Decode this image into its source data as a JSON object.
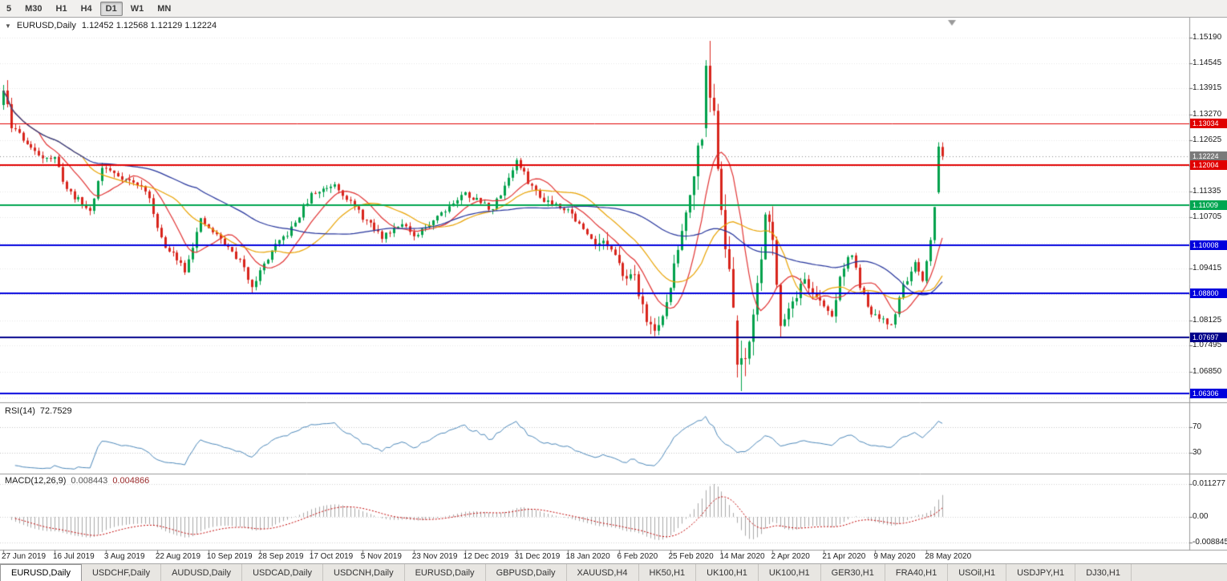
{
  "toolbar": {
    "buttons": [
      {
        "label": "5",
        "active": false
      },
      {
        "label": "M30",
        "active": false
      },
      {
        "label": "H1",
        "active": false
      },
      {
        "label": "H4",
        "active": false
      },
      {
        "label": "D1",
        "active": true
      },
      {
        "label": "W1",
        "active": false
      },
      {
        "label": "MN",
        "active": false
      }
    ]
  },
  "chart": {
    "menu_arrow": "▼",
    "symbol_label": "EURUSD,Daily",
    "ohlc": "1.12452 1.12568 1.12129 1.12224",
    "rsi_title": "RSI(14)",
    "rsi_value": "72.7529",
    "macd_title": "MACD(12,26,9)",
    "macd_value_main": "0.008443",
    "macd_value_signal": "0.004866"
  },
  "axis": {
    "price_labels": [
      "1.15190",
      "1.14545",
      "1.13915",
      "1.13270",
      "1.12625",
      "1.11335",
      "1.10705",
      "1.09415",
      "1.08125",
      "1.07495",
      "1.06850"
    ],
    "grid_prices": [
      1.1519,
      1.14545,
      1.13915,
      1.1327,
      1.12625,
      1.1198,
      1.11335,
      1.10705,
      1.1006,
      1.09415,
      1.08785,
      1.08125,
      1.07495,
      1.0685,
      1.06205
    ],
    "tags": [
      {
        "label": "1.13034",
        "price": 1.13034,
        "bg": "#e00000"
      },
      {
        "label": "1.12224",
        "price": 1.12224,
        "bg": "#7a7a7a"
      },
      {
        "label": "1.12004",
        "price": 1.12004,
        "bg": "#e00000"
      },
      {
        "label": "1.11009",
        "price": 1.11009,
        "bg": "#00a651"
      },
      {
        "label": "1.10008",
        "price": 1.10008,
        "bg": "#0000dd"
      },
      {
        "label": "1.08800",
        "price": 1.088,
        "bg": "#0000dd"
      },
      {
        "label": "1.07697",
        "price": 1.07697,
        "bg": "#00008b"
      },
      {
        "label": "1.06306",
        "price": 1.06306,
        "bg": "#0000dd"
      }
    ],
    "rsi_ticks": [
      {
        "label": "70",
        "value": 70
      },
      {
        "label": "30",
        "value": 30
      }
    ],
    "macd_ticks": [
      {
        "label": "0.011277",
        "value": 0.011277
      },
      {
        "label": "0.00",
        "value": 0
      },
      {
        "label": "-0.008845",
        "value": -0.008845
      }
    ]
  },
  "timeline": [
    "27 Jun 2019",
    "16 Jul 2019",
    "3 Aug 2019",
    "22 Aug 2019",
    "10 Sep 2019",
    "28 Sep 2019",
    "17 Oct 2019",
    "5 Nov 2019",
    "23 Nov 2019",
    "12 Dec 2019",
    "31 Dec 2019",
    "18 Jan 2020",
    "6 Feb 2020",
    "25 Feb 2020",
    "14 Mar 2020",
    "2 Apr 2020",
    "21 Apr 2020",
    "9 May 2020",
    "28 May 2020"
  ],
  "tabs": [
    {
      "label": "EURUSD,Daily",
      "active": true
    },
    {
      "label": "USDCHF,Daily",
      "active": false
    },
    {
      "label": "AUDUSD,Daily",
      "active": false
    },
    {
      "label": "USDCAD,Daily",
      "active": false
    },
    {
      "label": "USDCNH,Daily",
      "active": false
    },
    {
      "label": "EURUSD,Daily",
      "active": false
    },
    {
      "label": "GBPUSD,Daily",
      "active": false
    },
    {
      "label": "XAUUSD,H4",
      "active": false
    },
    {
      "label": "HK50,H1",
      "active": false
    },
    {
      "label": "UK100,H1",
      "active": false
    },
    {
      "label": "UK100,H1",
      "active": false
    },
    {
      "label": "GER30,H1",
      "active": false
    },
    {
      "label": "FRA40,H1",
      "active": false
    },
    {
      "label": "USOil,H1",
      "active": false
    },
    {
      "label": "USDJPY,H1",
      "active": false
    },
    {
      "label": "DJ30,H1",
      "active": false
    }
  ],
  "colors": {
    "up": "#00a14b",
    "down": "#d8241c",
    "grid": "#e6e6e6",
    "rsi_line": "#4a86b8",
    "rsi_level": "#c4c4c4",
    "macd_hist": "#a8a8a8",
    "macd_signal": "#c00000",
    "macd_grid": "#d0d0d0",
    "separator": "#9a9a9a",
    "axis_tick": "#707070",
    "current_price_line": "#8c8c8c",
    "shift_marker": "#9a9a9a"
  },
  "chart_data": {
    "type": "candlestick",
    "symbol": "EURUSD",
    "timeframe": "Daily",
    "title": "EURUSD,Daily with RSI(14) and MACD(12,26,9)",
    "last_bar": {
      "open": 1.12452,
      "high": 1.12568,
      "low": 1.12129,
      "close": 1.12224
    },
    "current_price": 1.12224,
    "x_range": [
      "27 Jun 2019",
      "early Jun 2020"
    ],
    "y_range": [
      1.0608,
      1.1568
    ],
    "seed": 11,
    "n_bars": 239,
    "horizontal_lines": [
      {
        "price": 1.13034,
        "color": "#e00000",
        "width": 1
      },
      {
        "price": 1.12004,
        "color": "#e00000",
        "width": 2
      },
      {
        "price": 1.11009,
        "color": "#00a651",
        "width": 2
      },
      {
        "price": 1.10008,
        "color": "#0000dd",
        "width": 2
      },
      {
        "price": 1.088,
        "color": "#0000dd",
        "width": 2
      },
      {
        "price": 1.07697,
        "color": "#00008b",
        "width": 2
      },
      {
        "price": 1.06306,
        "color": "#0000dd",
        "width": 2
      }
    ],
    "waypoints": [
      [
        0,
        1.137
      ],
      [
        3,
        1.129
      ],
      [
        8,
        1.123
      ],
      [
        13,
        1.1215
      ],
      [
        16,
        1.114
      ],
      [
        22,
        1.1085
      ],
      [
        25,
        1.1195
      ],
      [
        30,
        1.117
      ],
      [
        36,
        1.114
      ],
      [
        41,
        1.099
      ],
      [
        44,
        1.097
      ],
      [
        46,
        1.094
      ],
      [
        50,
        1.106
      ],
      [
        55,
        1.1015
      ],
      [
        60,
        1.096
      ],
      [
        63,
        1.09
      ],
      [
        68,
        1.0985
      ],
      [
        73,
        1.104
      ],
      [
        78,
        1.1125
      ],
      [
        84,
        1.1155
      ],
      [
        91,
        1.107
      ],
      [
        96,
        1.102
      ],
      [
        101,
        1.106
      ],
      [
        104,
        1.1015
      ],
      [
        110,
        1.1075
      ],
      [
        117,
        1.113
      ],
      [
        124,
        1.109
      ],
      [
        130,
        1.121
      ],
      [
        133,
        1.116
      ],
      [
        136,
        1.112
      ],
      [
        143,
        1.109
      ],
      [
        148,
        1.1025
      ],
      [
        153,
        1.1
      ],
      [
        156,
        1.0945
      ],
      [
        160,
        1.0915
      ],
      [
        164,
        1.079
      ],
      [
        167,
        1.081
      ],
      [
        171,
        1.099
      ],
      [
        174,
        1.1135
      ],
      [
        177,
        1.129
      ],
      [
        178,
        1.1448
      ],
      [
        180,
        1.133
      ],
      [
        182,
        1.11
      ],
      [
        184,
        1.092
      ],
      [
        187,
        1.069
      ],
      [
        189,
        1.0775
      ],
      [
        191,
        1.088
      ],
      [
        193,
        1.109
      ],
      [
        195,
        1.102
      ],
      [
        197,
        1.0805
      ],
      [
        200,
        1.086
      ],
      [
        203,
        1.0915
      ],
      [
        206,
        1.0865
      ],
      [
        210,
        1.0825
      ],
      [
        213,
        1.0955
      ],
      [
        215,
        1.0975
      ],
      [
        217,
        1.09
      ],
      [
        219,
        1.084
      ],
      [
        222,
        1.0815
      ],
      [
        225,
        1.08
      ],
      [
        228,
        1.09
      ],
      [
        231,
        1.095
      ],
      [
        233,
        1.0905
      ],
      [
        235,
        1.101
      ],
      [
        236,
        1.11
      ],
      [
        237,
        1.1245
      ],
      [
        238,
        1.1222
      ]
    ],
    "overrides": [
      {
        "i": 0,
        "o": 1.135,
        "h": 1.14,
        "l": 1.1338,
        "c": 1.1386
      },
      {
        "i": 1,
        "o": 1.1386,
        "h": 1.1412,
        "l": 1.1344,
        "c": 1.1352
      },
      {
        "i": 2,
        "o": 1.1352,
        "h": 1.1368,
        "l": 1.1282,
        "c": 1.1292
      },
      {
        "i": 46,
        "l": 1.0926
      },
      {
        "i": 63,
        "l": 1.0879
      },
      {
        "i": 164,
        "l": 1.0778
      },
      {
        "i": 178,
        "o": 1.1292,
        "h": 1.1462,
        "l": 1.127,
        "c": 1.1448
      },
      {
        "i": 179,
        "o": 1.1448,
        "h": 1.151,
        "l": 1.1332,
        "c": 1.1368
      },
      {
        "i": 186,
        "o": 1.0812,
        "h": 1.0825,
        "l": 1.067,
        "c": 1.0702
      },
      {
        "i": 187,
        "o": 1.0702,
        "h": 1.0762,
        "l": 1.0636,
        "c": 1.0718
      },
      {
        "i": 197,
        "l": 1.0772
      },
      {
        "i": 237,
        "o": 1.1132,
        "h": 1.1257,
        "l": 1.1128,
        "c": 1.1246
      },
      {
        "i": 238,
        "o": 1.12452,
        "h": 1.12568,
        "l": 1.12129,
        "c": 1.12224
      }
    ],
    "indicators": {
      "rsi": {
        "period": 14,
        "last": 72.7529,
        "levels": [
          70,
          30
        ]
      },
      "macd": {
        "fast": 12,
        "slow": 26,
        "signal": 9,
        "last_main": 0.008443,
        "last_signal": 0.004866,
        "scale_max": 0.011277
      },
      "ma": [
        {
          "period": 10,
          "color": "#e03131"
        },
        {
          "period": 21,
          "color": "#e8a200"
        },
        {
          "period": 50,
          "color": "#24339b"
        }
      ]
    },
    "date_labels_every_bars": 13
  }
}
